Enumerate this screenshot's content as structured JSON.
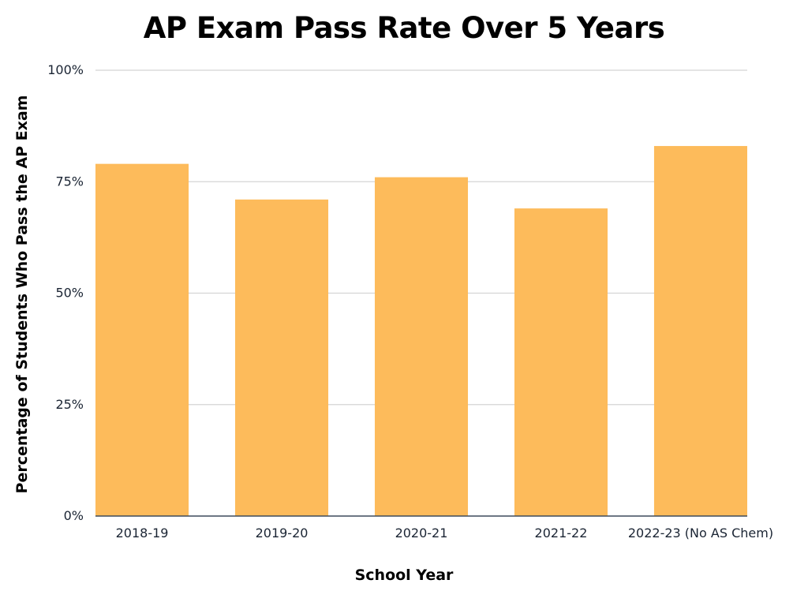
{
  "chart_data": {
    "type": "bar",
    "title": "AP Exam Pass Rate Over 5 Years",
    "xlabel": "School Year",
    "ylabel": "Percentage of Students Who Pass the AP Exam",
    "categories": [
      "2018-19",
      "2019-20",
      "2020-21",
      "2021-22",
      "2022-23 (No AS Chem)"
    ],
    "values": [
      79,
      71,
      76,
      69,
      83
    ],
    "ylim": [
      0,
      100
    ],
    "yticks": [
      0,
      25,
      50,
      75,
      100
    ],
    "ytick_labels": [
      "0%",
      "25%",
      "50%",
      "75%",
      "100%"
    ],
    "grid": true,
    "legend": "none",
    "colors": {
      "bar": "#FDBB5B",
      "grid": "#d4d4d4",
      "axis": "#3d4a5c"
    }
  }
}
